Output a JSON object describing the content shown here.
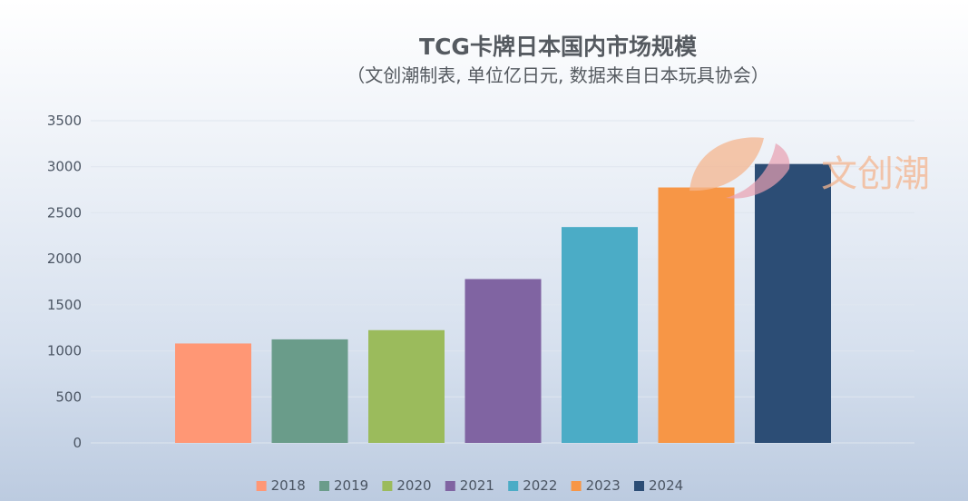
{
  "chart_data": {
    "type": "bar",
    "title": "TCG卡牌日本国内市场规模",
    "subtitle": "（文创潮制表, 单位亿日元, 数据来自日本玩具协会）",
    "categories": [
      "2018",
      "2019",
      "2020",
      "2021",
      "2022",
      "2023",
      "2024"
    ],
    "values": [
      1080,
      1125,
      1225,
      1780,
      2345,
      2775,
      3030
    ],
    "colors": [
      "#ff9775",
      "#6a9c8a",
      "#9bbb5c",
      "#8064a2",
      "#4bacc6",
      "#f79646",
      "#2c4d75"
    ],
    "ylim": [
      0,
      3500
    ],
    "yticks": [
      0,
      500,
      1000,
      1500,
      2000,
      2500,
      3000,
      3500
    ],
    "xlabel": "",
    "ylabel": "",
    "grid": true,
    "legend": "bottom"
  },
  "watermark": {
    "text": "文创潮",
    "colors": [
      "#f4b58f",
      "#e8a0b0"
    ]
  }
}
